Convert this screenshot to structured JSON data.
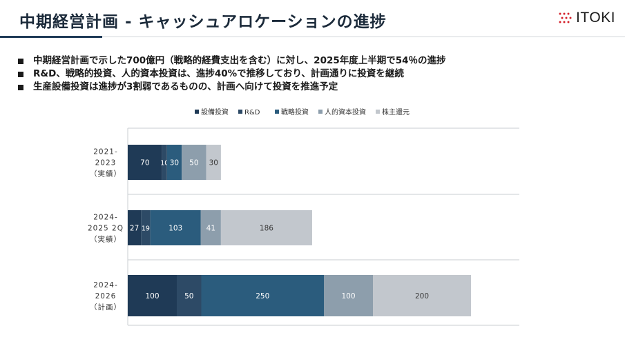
{
  "header": {
    "title": "中期経営計画 - キャッシュアロケーションの進捗",
    "logo_text": "ITOKI"
  },
  "bullets": [
    "中期経営計画で示した700億円（戦略的経費支出を含む）に対し、2025年度上半期で54％の進捗",
    "R&D、戦略的投資、人的資本投資は、進捗40%で推移しており、計画通りに投資を継続",
    "生産設備投資は進捗が3割弱であるものの、計画へ向けて投資を推進予定"
  ],
  "colors": {
    "accent": "#1f3a56",
    "series": [
      "#1f3a56",
      "#2d4a66",
      "#2b5c7d",
      "#8d9eac",
      "#c2c7cd"
    ],
    "label_light": "#ffffff",
    "label_dark": "#3a3a3a"
  },
  "chart_data": {
    "type": "bar",
    "orientation": "horizontal",
    "stacked": true,
    "categories": [
      [
        "2021-",
        "2023",
        "（実績）"
      ],
      [
        "2024-",
        "2025 2Q",
        "（実績）"
      ],
      [
        "2024-",
        "2026",
        "（計画）"
      ]
    ],
    "series": [
      {
        "name": "設備投資",
        "values": [
          70,
          27,
          100
        ]
      },
      {
        "name": "R&D",
        "values": [
          10,
          19,
          50
        ]
      },
      {
        "name": "戦略投資",
        "values": [
          30,
          103,
          250
        ]
      },
      {
        "name": "人的資本投資",
        "values": [
          50,
          41,
          100
        ]
      },
      {
        "name": "株主還元",
        "values": [
          30,
          186,
          200
        ]
      }
    ],
    "data_labels": [
      [
        "70",
        "10",
        "30",
        "50",
        "30"
      ],
      [
        "27",
        "19",
        "103",
        "41",
        "186"
      ],
      [
        "100",
        "50",
        "250",
        "100",
        "200"
      ]
    ],
    "legend_position": "top",
    "xlim": [
      0,
      800
    ],
    "grid": "horizontal category separators"
  }
}
